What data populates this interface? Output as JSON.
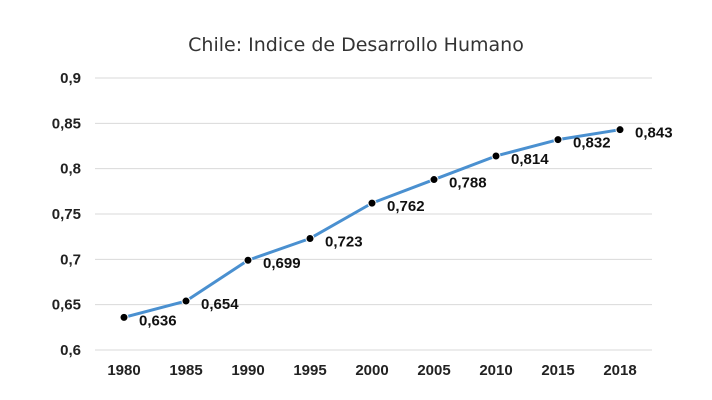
{
  "chart_data": {
    "type": "line",
    "title": "Chile: Indice de Desarrollo Humano",
    "xlabel": "",
    "ylabel": "",
    "categories": [
      "1980",
      "1985",
      "1990",
      "1995",
      "2000",
      "2005",
      "2010",
      "2015",
      "2018"
    ],
    "series": [
      {
        "values": [
          0.636,
          0.654,
          0.699,
          0.723,
          0.762,
          0.788,
          0.814,
          0.832,
          0.843
        ],
        "labels": [
          "0,636",
          "0,654",
          "0,699",
          "0,723",
          "0,762",
          "0,788",
          "0,814",
          "0,832",
          "0,843"
        ],
        "color": "#4a90d0"
      }
    ],
    "ylim": [
      0.6,
      0.9
    ],
    "yticks": [
      0.6,
      0.65,
      0.7,
      0.75,
      0.8,
      0.85,
      0.9
    ],
    "ytick_labels": [
      "0,6",
      "0,65",
      "0,7",
      "0,75",
      "0,8",
      "0,85",
      "0,9"
    ],
    "grid": true,
    "legend": "none",
    "colors": {
      "line": "#4a90d0",
      "marker": "#000000",
      "grid": "#d9d9d9"
    }
  }
}
